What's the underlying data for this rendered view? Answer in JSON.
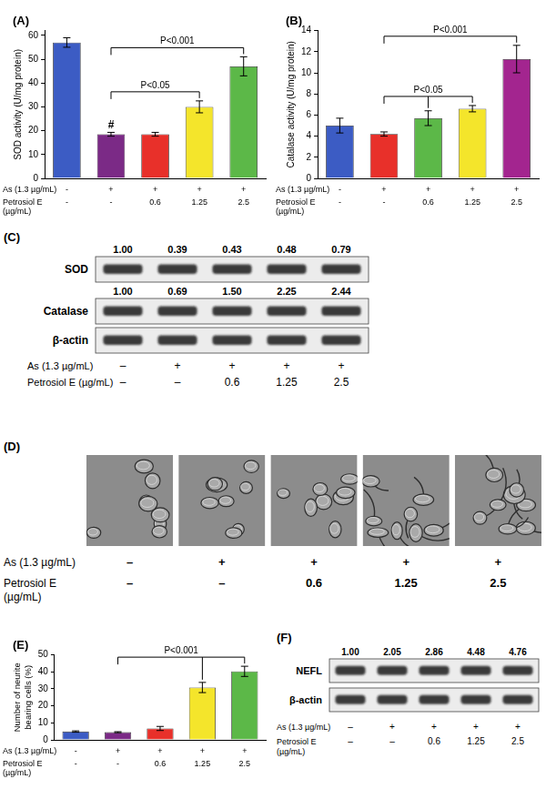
{
  "chart_data": [
    {
      "type": "bar",
      "title": "(A)",
      "y_label": "SOD activity (U/mg protein)",
      "categories": [
        null,
        null,
        null,
        null,
        null
      ],
      "values": [
        57,
        18.5,
        18.5,
        30,
        47
      ],
      "errors": [
        2,
        0.8,
        0.8,
        2.5,
        4
      ],
      "colors": [
        "#3c5cc4",
        "#7b2a86",
        "#e8302a",
        "#f4e52b",
        "#5cb848"
      ],
      "ylim": [
        0,
        62
      ],
      "yticks": [
        0,
        10,
        20,
        30,
        40,
        50,
        60
      ],
      "grid": false,
      "tick_labels": "y",
      "conditions": [
        {
          "label": "As (1.3 µg/mL)",
          "values": [
            "-",
            "+",
            "+",
            "+",
            "+"
          ]
        },
        {
          "label": "Petrosiol E (µg/mL)",
          "values": [
            "-",
            "-",
            "0.6",
            "1.25",
            "2.5"
          ]
        }
      ],
      "annotations": [
        {
          "text": "#",
          "at": 1
        },
        {
          "text": "P<0.05",
          "from": 1,
          "to": [
            3
          ]
        },
        {
          "text": "P<0.001",
          "from": 1,
          "to": [
            4
          ]
        }
      ]
    },
    {
      "type": "bar",
      "title": "(B)",
      "y_label": "Catalase activity (U/mg protein)",
      "categories": [
        null,
        null,
        null,
        null,
        null
      ],
      "values": [
        5.0,
        4.2,
        5.7,
        6.6,
        11.3
      ],
      "errors": [
        0.7,
        0.2,
        0.7,
        0.3,
        1.3
      ],
      "colors": [
        "#3c5cc4",
        "#e8302a",
        "#5cb848",
        "#f4e52b",
        "#a3258f"
      ],
      "ylim": [
        0,
        14
      ],
      "yticks": [
        0,
        2,
        4,
        6,
        8,
        10,
        12,
        14
      ],
      "grid": false,
      "tick_labels": "y",
      "conditions": [
        {
          "label": "As (1.3 µg/mL)",
          "values": [
            "-",
            "+",
            "+",
            "+",
            "+"
          ]
        },
        {
          "label": "Petrosiol E (µg/mL)",
          "values": [
            "-",
            "-",
            "0.6",
            "1.25",
            "2.5"
          ]
        }
      ],
      "annotations": [
        {
          "text": "P<0.05",
          "from": 1,
          "to": [
            2,
            3
          ]
        },
        {
          "text": "P<0.001",
          "from": 1,
          "to": [
            4
          ]
        }
      ]
    },
    {
      "type": "bar",
      "title": "(E)",
      "y_label": "Number of neurite bearing cells (%)",
      "categories": [
        null,
        null,
        null,
        null,
        null
      ],
      "values": [
        4.9,
        4.5,
        6.7,
        30.8,
        40.3
      ],
      "errors": [
        0.4,
        0.3,
        1.2,
        3,
        3
      ],
      "colors": [
        "#3c5cc4",
        "#7b2a86",
        "#e8302a",
        "#f4e52b",
        "#5cb848"
      ],
      "ylim": [
        0,
        50
      ],
      "yticks": [
        0,
        10,
        20,
        30,
        40,
        50
      ],
      "grid": false,
      "tick_labels": "y",
      "conditions": [
        {
          "label": "As (1.3 µg/mL)",
          "values": [
            "-",
            "+",
            "+",
            "+",
            "+"
          ]
        },
        {
          "label": "Petrosiol E (µg/mL)",
          "values": [
            "-",
            "-",
            "0.6",
            "1.25",
            "2.5"
          ]
        }
      ],
      "annotations": [
        {
          "text": "P<0.001",
          "from": 1,
          "to": [
            3,
            4
          ]
        }
      ]
    }
  ],
  "blots": [
    {
      "title": "(C)",
      "rows": [
        {
          "label": "SOD",
          "quant": [
            "1.00",
            "0.39",
            "0.43",
            "0.48",
            "0.79"
          ]
        },
        {
          "label": "Catalase",
          "quant": [
            "1.00",
            "0.69",
            "1.50",
            "2.25",
            "2.44"
          ]
        },
        {
          "label": "β-actin"
        }
      ],
      "conditions": [
        {
          "label": "As (1.3 µg/mL)",
          "values": [
            "–",
            "+",
            "+",
            "+",
            "+"
          ]
        },
        {
          "label": "Petrosiol E (µg/mL)",
          "values": [
            "–",
            "–",
            "0.6",
            "1.25",
            "2.5"
          ]
        }
      ]
    },
    {
      "title": "(F)",
      "rows": [
        {
          "label": "NEFL",
          "quant": [
            "1.00",
            "2.05",
            "2.86",
            "4.48",
            "4.76"
          ]
        },
        {
          "label": "β-actin"
        }
      ],
      "conditions": [
        {
          "label": "As (1.3 µg/mL)",
          "values": [
            "–",
            "+",
            "+",
            "+",
            "+"
          ]
        },
        {
          "label": "Petrosiol E (µg/mL)",
          "values": [
            "–",
            "–",
            "0.6",
            "1.25",
            "2.5"
          ]
        }
      ]
    }
  ],
  "micrographs": {
    "title": "(D)",
    "conditions": [
      {
        "label": "As (1.3 µg/mL)",
        "values": [
          "–",
          "+",
          "+",
          "+",
          "+"
        ]
      },
      {
        "label": "Petrosiol E (µg/mL)",
        "values": [
          "–",
          "–",
          "0.6",
          "1.25",
          "2.5"
        ]
      }
    ]
  }
}
